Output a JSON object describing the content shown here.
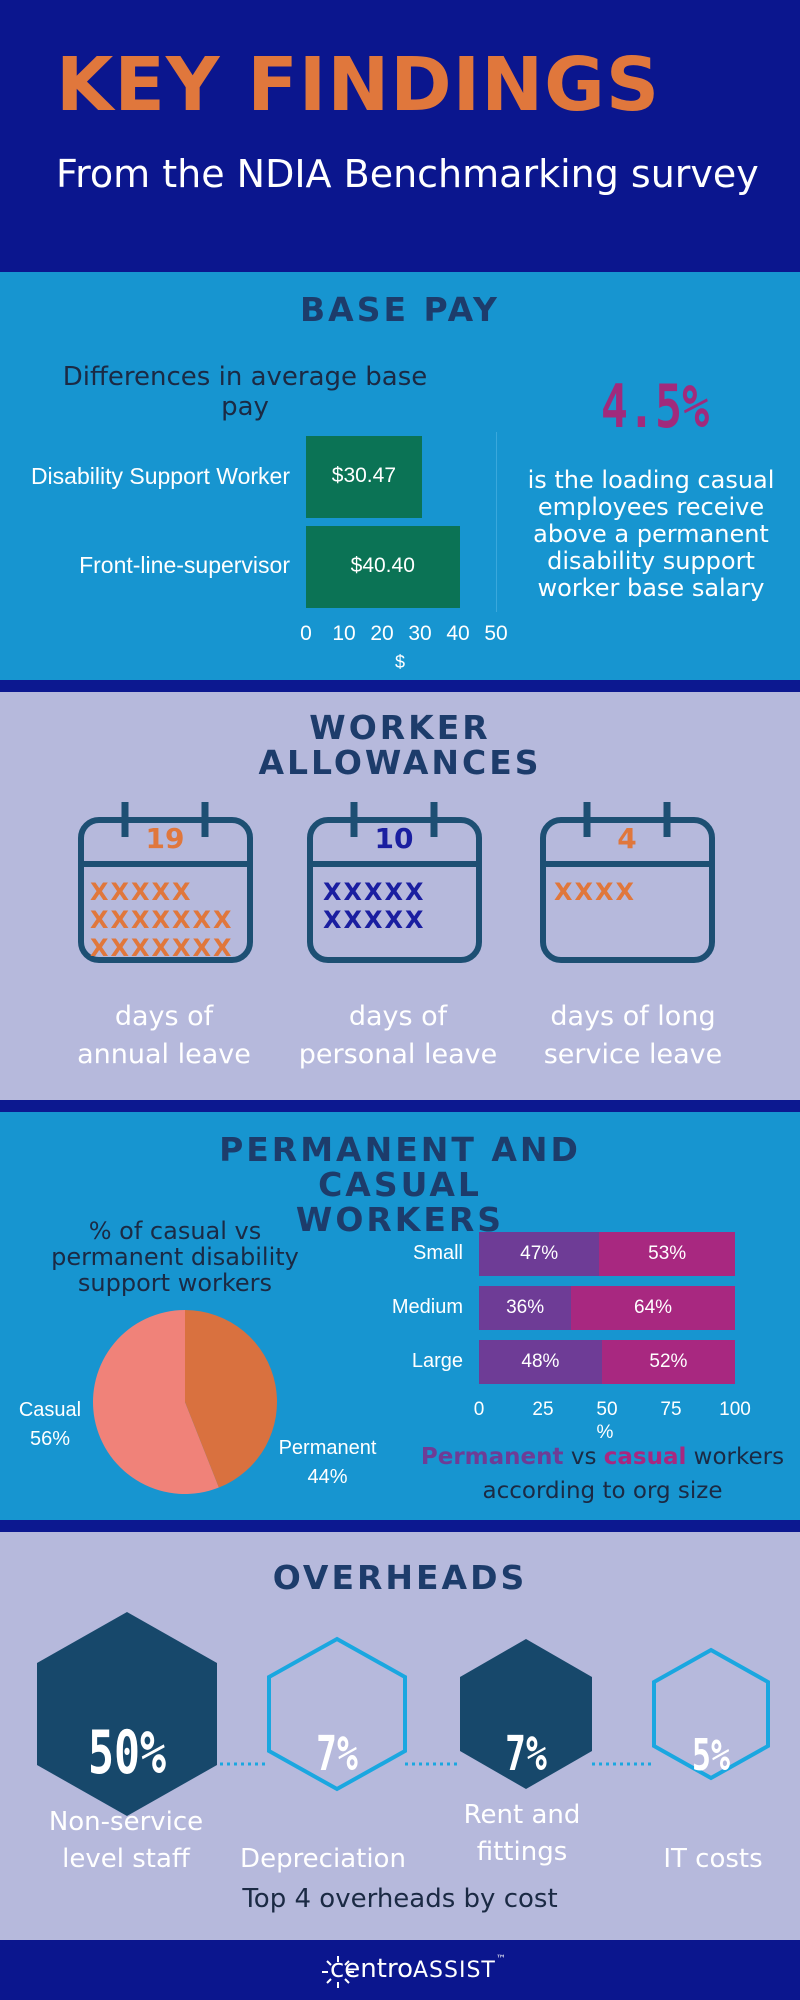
{
  "header": {
    "title": "KEY FINDINGS",
    "subtitle": "From the NDIA Benchmarking survey"
  },
  "base_pay": {
    "section_title": "BASE PAY",
    "chart_title": "Differences in average base pay",
    "highlight_value": "4.5%",
    "highlight_text": "is the loading casual employees receive above a permanent disability support worker base salary",
    "bar_color": "#0b7355"
  },
  "allowances": {
    "section_title": "WORKER ALLOWANCES",
    "items": [
      {
        "number": "19",
        "x_rows": [
          "XXXXX",
          "XXXXXXX",
          "XXXXXXX"
        ],
        "label_line1": "days of",
        "label_line2": "annual leave",
        "color": "#e0773c"
      },
      {
        "number": "10",
        "x_rows": [
          "XXXXX",
          "XXXXX"
        ],
        "label_line1": "days of",
        "label_line2": "personal leave",
        "color": "#1a1ea0"
      },
      {
        "number": "4",
        "x_rows": [
          "XXXX"
        ],
        "label_line1": "days of long",
        "label_line2": "service leave",
        "color": "#e0773c"
      }
    ]
  },
  "workers": {
    "section_title": "PERMANENT AND CASUAL WORKERS",
    "pie_title": "% of casual vs permanent disability support workers",
    "caption_perm": "Permanent",
    "caption_vs": " vs ",
    "caption_cas": "casual",
    "caption_rest": " workers",
    "caption_line2": "according to org size",
    "colors": {
      "casual_pie": "#f08279",
      "permanent_pie": "#d9713f",
      "permanent_bar": "#6e3c96",
      "casual_bar": "#a82880"
    }
  },
  "overheads": {
    "section_title": "OVERHEADS",
    "items": [
      {
        "value": "50%",
        "label_line1": "Non-service",
        "label_line2": "level staff"
      },
      {
        "value": "7%",
        "label_line1": "",
        "label_line2": "Depreciation"
      },
      {
        "value": "7%",
        "label_line1": "Rent and",
        "label_line2": "fittings"
      },
      {
        "value": "5%",
        "label_line1": "",
        "label_line2": "IT costs"
      }
    ],
    "caption": "Top 4 overheads by cost"
  },
  "footer": {
    "logo_primary": "centro",
    "logo_secondary": "ASSIST",
    "logo_mark": "™"
  },
  "chart_data": [
    {
      "type": "bar",
      "orientation": "horizontal",
      "categories": [
        "Disability Support Worker",
        "Front-line-supervisor"
      ],
      "values": [
        30.47,
        40.4
      ],
      "value_labels": [
        "$30.47",
        "$40.40"
      ],
      "xlabel": "$",
      "xlim": [
        0,
        50
      ],
      "ticks": [
        "0",
        "10",
        "20",
        "30",
        "40",
        "50"
      ]
    },
    {
      "type": "pie",
      "categories": [
        "Casual",
        "Permanent"
      ],
      "values": [
        56,
        44
      ],
      "labels": [
        "56%",
        "44%"
      ]
    },
    {
      "type": "bar",
      "orientation": "horizontal",
      "stacked": true,
      "categories": [
        "Small",
        "Medium",
        "Large"
      ],
      "series": [
        {
          "values": [
            47,
            36,
            48
          ],
          "labels": [
            "47%",
            "36%",
            "48%"
          ]
        },
        {
          "values": [
            53,
            64,
            52
          ],
          "labels": [
            "53%",
            "64%",
            "52%"
          ]
        }
      ],
      "xlabel": "%",
      "xlim": [
        0,
        100
      ],
      "ticks": [
        "0",
        "25",
        "50",
        "75",
        "100"
      ]
    }
  ]
}
